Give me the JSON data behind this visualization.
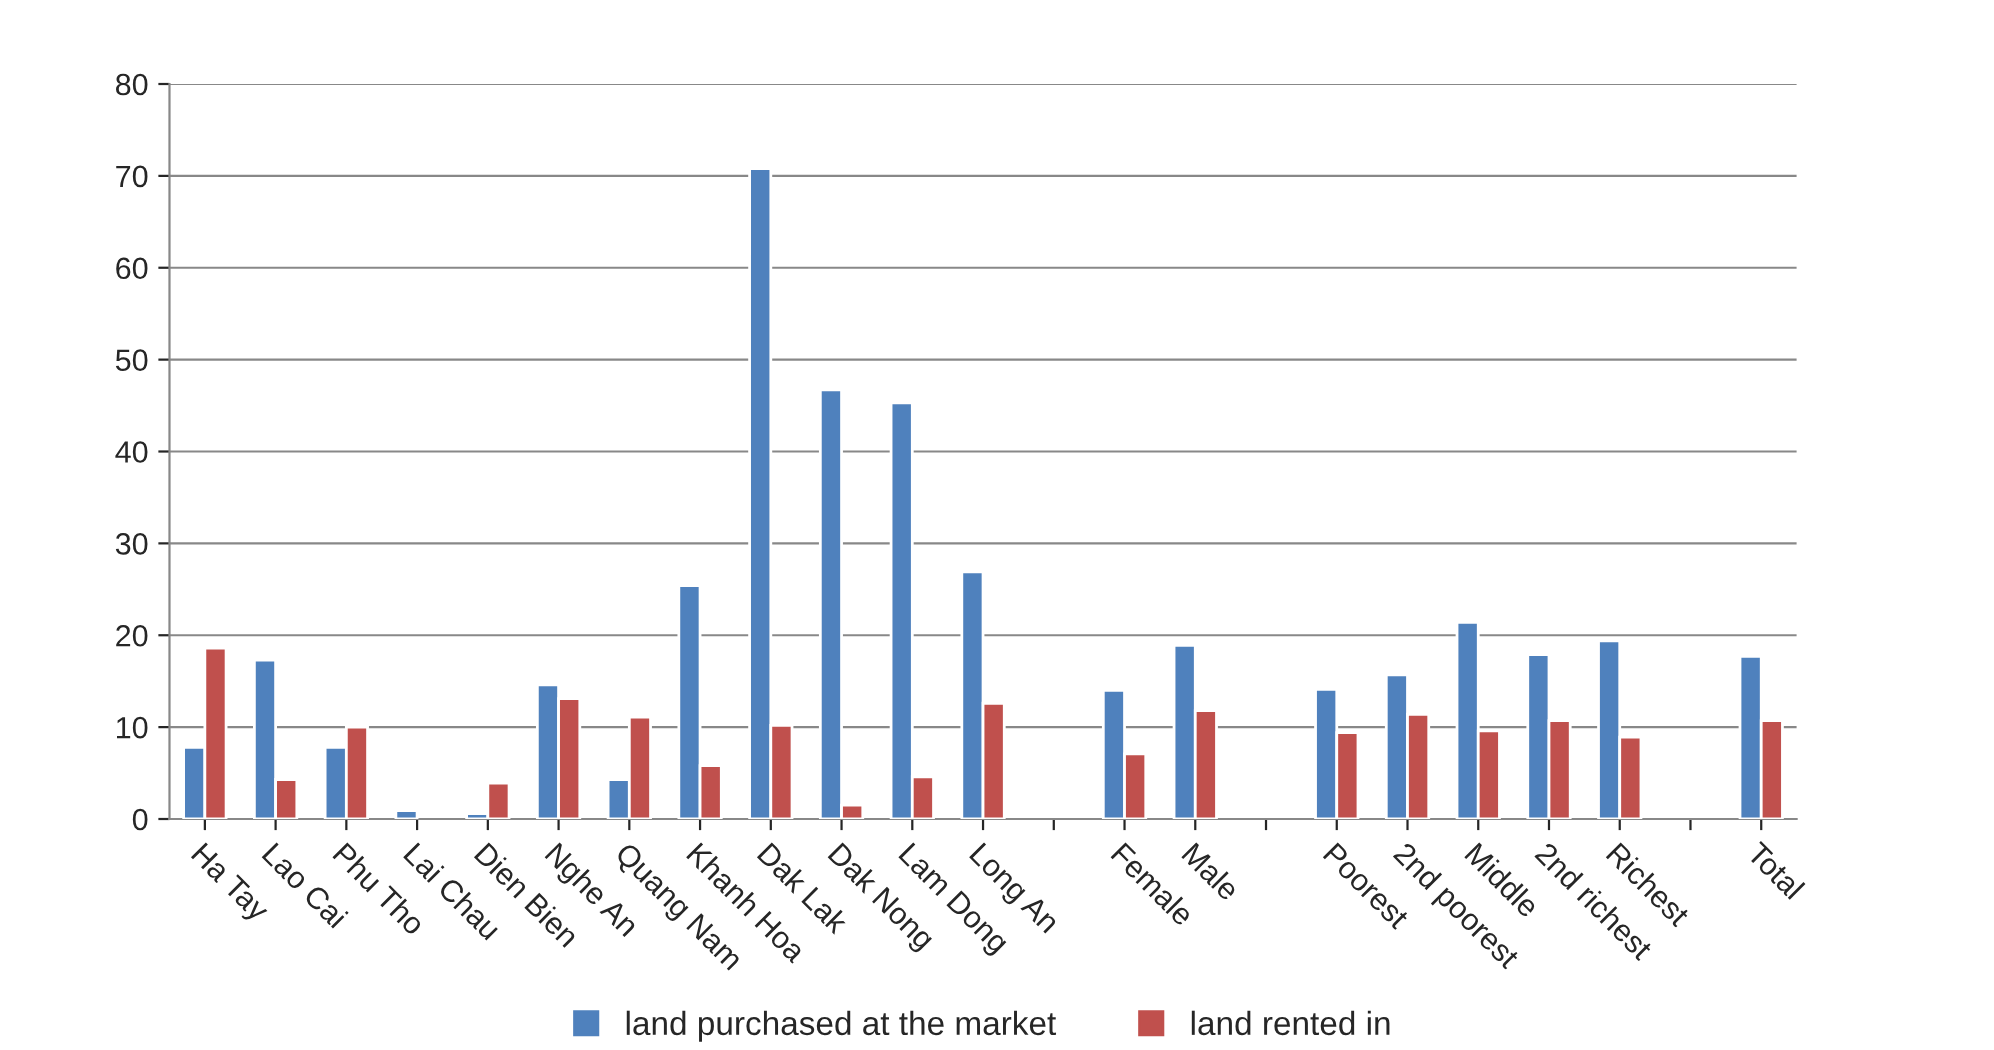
{
  "chart_data": {
    "type": "bar",
    "categories": [
      "Ha Tay",
      "Lao Cai",
      "Phu Tho",
      "Lai Chau",
      "Dien Bien",
      "Nghe An",
      "Quang Nam",
      "Khanh Hoa",
      "Dak Lak",
      "Dak Nong",
      "Lam Dong",
      "Long An",
      null,
      "Female",
      "Male",
      null,
      "Poorest",
      "2nd poorest",
      "Middle",
      "2nd richest",
      "Richest",
      null,
      "Total"
    ],
    "series": [
      {
        "name": "land purchased at the market",
        "color": "#4f81bd",
        "values": [
          7.8,
          17.3,
          7.8,
          0.9,
          0.6,
          14.6,
          4.3,
          25.4,
          70.8,
          46.7,
          45.3,
          26.9,
          null,
          14.0,
          18.9,
          null,
          14.1,
          15.7,
          21.4,
          17.9,
          19.4,
          null,
          17.7
        ]
      },
      {
        "name": "land rented in",
        "color": "#c0504d",
        "values": [
          18.6,
          4.3,
          10.0,
          null,
          3.9,
          13.1,
          11.1,
          5.8,
          10.2,
          1.5,
          4.6,
          12.6,
          null,
          7.1,
          11.8,
          null,
          9.4,
          11.4,
          9.6,
          10.7,
          8.9,
          null,
          10.7
        ]
      }
    ],
    "ylim": [
      0,
      80
    ],
    "yticks": [
      0,
      10,
      20,
      30,
      40,
      50,
      60,
      70,
      80
    ],
    "grid": "y",
    "legend": "bottom"
  }
}
